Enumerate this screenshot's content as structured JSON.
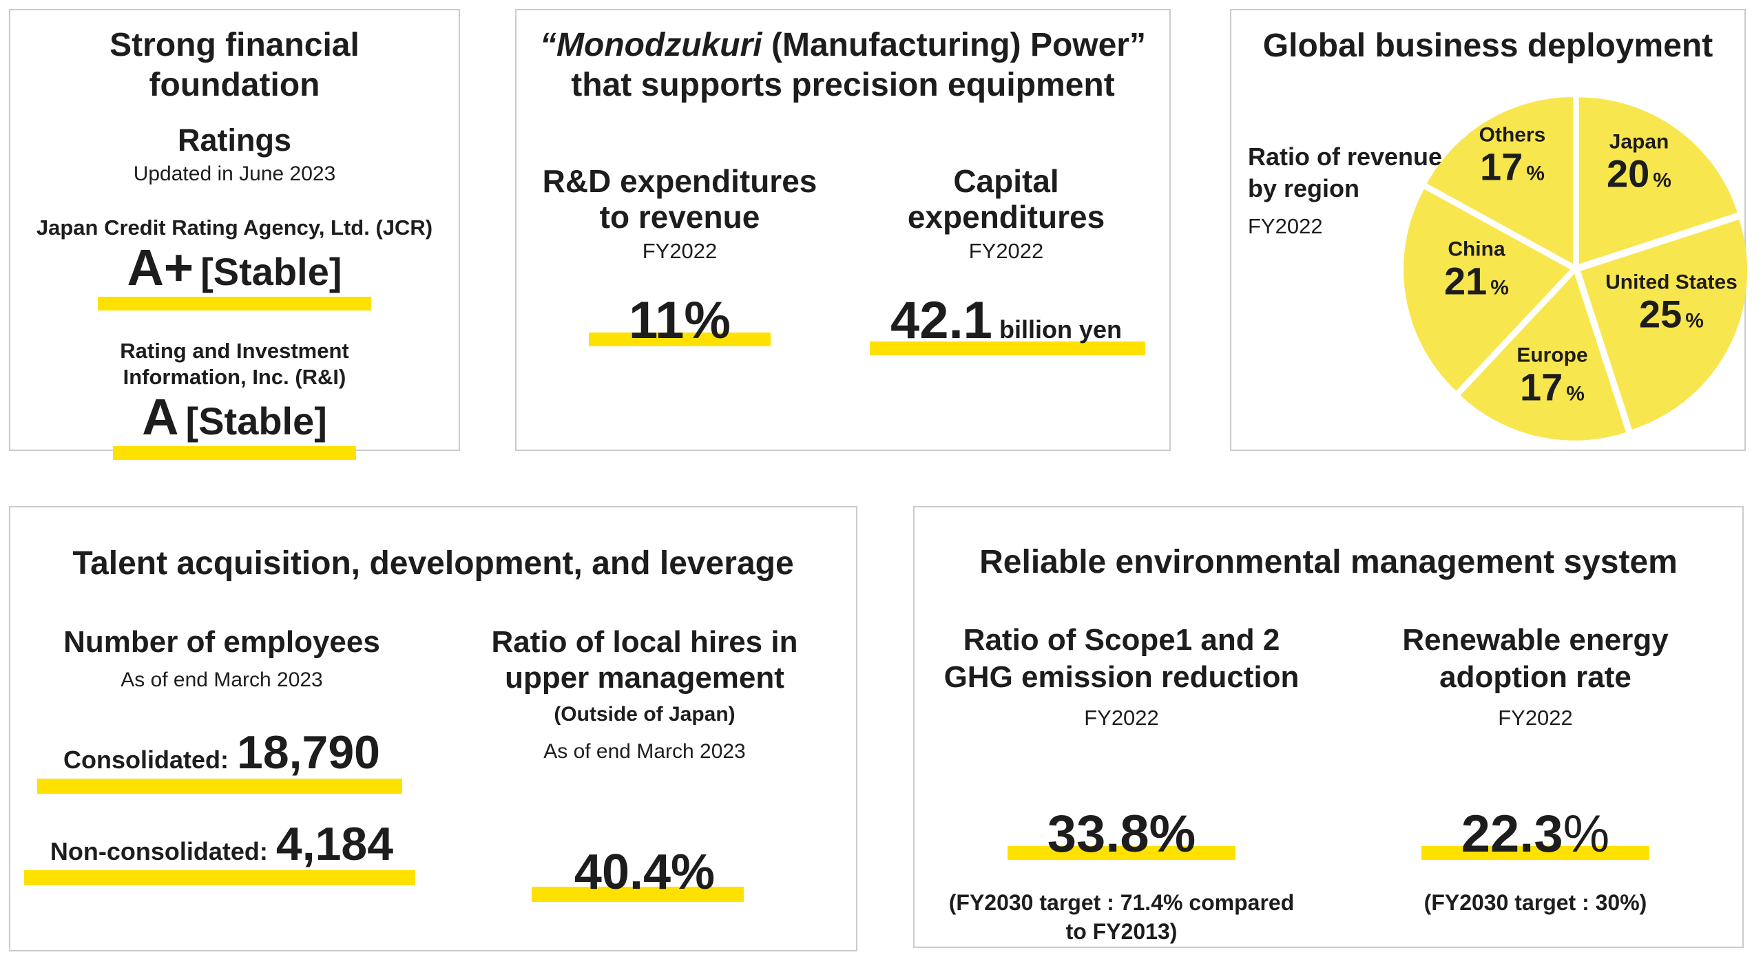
{
  "colors": {
    "accent_yellow": "#FFE100",
    "pie_yellow": "#F8E64E",
    "text": "#1D1D1D",
    "card_border": "#CBCBCB"
  },
  "financial_card": {
    "title_line1": "Strong financial",
    "title_line2": "foundation",
    "section_label": "Ratings",
    "updated": "Updated in June 2023",
    "jcr": {
      "agency": "Japan Credit Rating Agency, Ltd. (JCR)",
      "rating": "A+",
      "outlook": "[Stable]"
    },
    "ri": {
      "agency_line1": "Rating and Investment",
      "agency_line2": "Information, Inc. (R&I)",
      "rating": "A",
      "outlook": "[Stable]"
    }
  },
  "monodzukuri_card": {
    "title_italic": "“Monodzukuri",
    "title_line1_rest": " (Manufacturing) Power”",
    "title_line2": "that supports precision equipment",
    "rd": {
      "heading_line1": "R&D expenditures",
      "heading_line2": "to revenue",
      "period": "FY2022",
      "value": "11%"
    },
    "capex": {
      "heading_line1": "Capital",
      "heading_line2": "expenditures",
      "period": "FY2022",
      "value": "42.1",
      "unit": "billion yen"
    }
  },
  "global_card": {
    "title": "Global business deployment",
    "legend_line1": "Ratio of revenue",
    "legend_line2": "by region",
    "period": "FY2022"
  },
  "chart_data": {
    "type": "pie",
    "title": "Global business deployment",
    "subtitle": "Ratio of revenue by region FY2022",
    "unit": "%",
    "start_angle_deg": 0,
    "direction": "clockwise",
    "legend_position": "labels-on-slices",
    "colors": {
      "slice": "#F8E64E",
      "gap": "#FFFFFF"
    },
    "slices": [
      {
        "label": "Japan",
        "value": 20
      },
      {
        "label": "United States",
        "value": 25
      },
      {
        "label": "Europe",
        "value": 17
      },
      {
        "label": "China",
        "value": 21
      },
      {
        "label": "Others",
        "value": 17
      }
    ]
  },
  "talent_card": {
    "title": "Talent acquisition, development, and leverage",
    "employees": {
      "heading": "Number of employees",
      "asof": "As of end March 2023",
      "rows": [
        {
          "label": "Consolidated:",
          "value": "18,790"
        },
        {
          "label": "Non-consolidated:",
          "value": "4,184"
        }
      ]
    },
    "local_hires": {
      "heading_line1": "Ratio of local hires in",
      "heading_line2": "upper management",
      "scope": "(Outside of Japan)",
      "asof": "As of end March 2023",
      "value": "40.4%"
    }
  },
  "environment_card": {
    "title": "Reliable environmental management system",
    "ghg": {
      "heading_line1": "Ratio of Scope1 and 2",
      "heading_line2": "GHG emission reduction",
      "period": "FY2022",
      "value": "33.8%",
      "note_line1": "(FY2030 target : 71.4% compared",
      "note_line2": "to FY2013)"
    },
    "renewable": {
      "heading_line1": "Renewable energy",
      "heading_line2": "adoption rate",
      "period": "FY2022",
      "value_number": "22.3",
      "value_percent": "%",
      "note": "(FY2030 target : 30%)"
    }
  }
}
